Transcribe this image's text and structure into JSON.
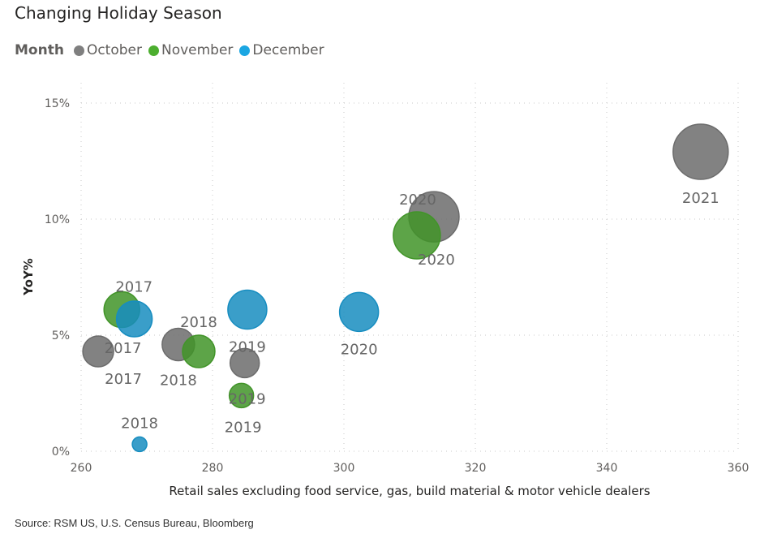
{
  "chart_data": {
    "type": "scatter",
    "title": "Changing Holiday Season",
    "legend_title": "Month",
    "legend_placement": "top-left",
    "xlabel": "Retail sales excluding food service, gas, build material & motor vehicle dealers",
    "ylabel": "YoY%",
    "xlim": [
      260,
      360
    ],
    "ylim": [
      0,
      15
    ],
    "x_ticks": [
      "260",
      "280",
      "300",
      "320",
      "340",
      "360"
    ],
    "y_ticks": [
      "0%",
      "5%",
      "10%",
      "15%"
    ],
    "grid": true,
    "series": [
      {
        "name": "October",
        "color": "#7f7f7f",
        "points": [
          {
            "x": 262.6,
            "y": 4.3,
            "size": 19,
            "label": "2017"
          },
          {
            "x": 274.8,
            "y": 4.6,
            "size": 20,
            "label": "2018"
          },
          {
            "x": 284.9,
            "y": 3.8,
            "size": 18,
            "label": "2019"
          },
          {
            "x": 313.7,
            "y": 10.1,
            "size": 31,
            "label": "2020"
          },
          {
            "x": 354.3,
            "y": 12.9,
            "size": 34,
            "label": "2021"
          }
        ]
      },
      {
        "name": "November",
        "color": "#4cae2f",
        "points": [
          {
            "x": 266.2,
            "y": 6.1,
            "size": 22,
            "label": "2017"
          },
          {
            "x": 277.9,
            "y": 4.3,
            "size": 20,
            "label": "2018"
          },
          {
            "x": 284.4,
            "y": 2.4,
            "size": 15,
            "label": "2019"
          },
          {
            "x": 311.1,
            "y": 9.3,
            "size": 29,
            "label": "2020"
          }
        ]
      },
      {
        "name": "December",
        "color": "#1ba6e2",
        "points": [
          {
            "x": 268.1,
            "y": 5.7,
            "size": 22,
            "label": "2017"
          },
          {
            "x": 268.9,
            "y": 0.3,
            "size": 9,
            "label": "2018"
          },
          {
            "x": 285.3,
            "y": 6.1,
            "size": 24,
            "label": "2019"
          },
          {
            "x": 302.3,
            "y": 6.0,
            "size": 24,
            "label": "2020"
          }
        ]
      }
    ]
  },
  "source": "Source: RSM US, U.S. Census Bureau, Bloomberg"
}
